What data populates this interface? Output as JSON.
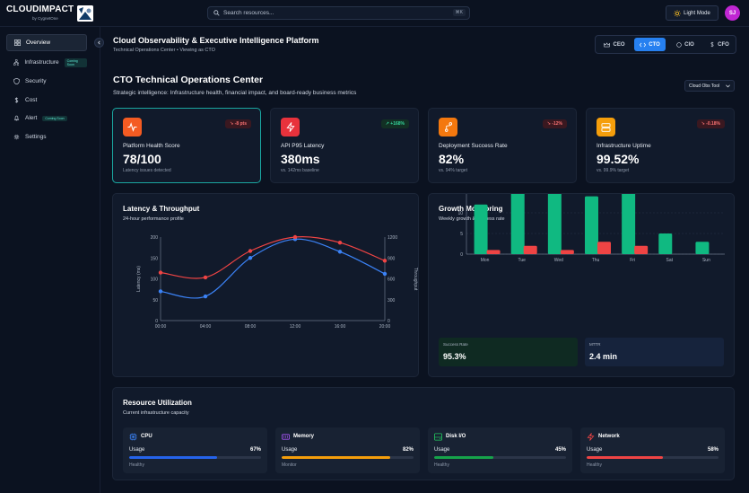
{
  "app": {
    "logo_text": "CLOUDIMPACT",
    "logo_sub": "by CygnetOne",
    "search_placeholder": "Search resources...",
    "search_shortcut": "⌘K",
    "light_mode_label": "Light Mode",
    "avatar_initials": "SJ"
  },
  "sidebar": {
    "items": [
      {
        "label": "Overview",
        "icon": "grid-icon",
        "active": true
      },
      {
        "label": "Infrastructure",
        "icon": "network-icon",
        "badge": "Coming Soon"
      },
      {
        "label": "Security",
        "icon": "shield-icon"
      },
      {
        "label": "Cost",
        "icon": "dollar-icon"
      },
      {
        "label": "Alert",
        "icon": "bell-icon",
        "badge": "Coming Soon"
      },
      {
        "label": "Settings",
        "icon": "gear-icon"
      }
    ]
  },
  "header": {
    "title": "Cloud Observability & Executive Intelligence Platform",
    "subtitle": "Technical Operations Center • Viewing as CTO",
    "roles": [
      {
        "label": "CEO",
        "active": false
      },
      {
        "label": "CTO",
        "active": true
      },
      {
        "label": "CIO",
        "active": false
      },
      {
        "label": "CFO",
        "active": false
      }
    ]
  },
  "section": {
    "title": "CTO Technical Operations Center",
    "subtitle": "Strategic intelligence: Infrastructure health, financial impact, and board-ready business metrics",
    "tool_select": "Cloud Obs Tool"
  },
  "kpis": [
    {
      "label": "Platform Health Score",
      "value": "78/100",
      "note": "Latency issues detected",
      "delta": "-8 pts",
      "trend": "down",
      "color": "#f45b22"
    },
    {
      "label": "API P95 Latency",
      "value": "380ms",
      "note": "vs. 142ms baseline",
      "delta": "+168%",
      "trend": "up",
      "color": "#e8323c"
    },
    {
      "label": "Deployment Success Rate",
      "value": "82%",
      "note": "vs. 94% target",
      "delta": "-12%",
      "trend": "down",
      "color": "#f4780e"
    },
    {
      "label": "Infrastructure Uptime",
      "value": "99.52%",
      "note": "vs. 99.9% target",
      "delta": "-0.18%",
      "trend": "down",
      "color": "#f59e0b"
    }
  ],
  "latency_panel": {
    "title": "Latency & Throughput",
    "subtitle": "24-hour performance profile",
    "left_axis_label": "Latency (ms)",
    "right_axis_label": "Throughput"
  },
  "growth_panel": {
    "title": "Growth Monitoring",
    "subtitle": "Weekly growth & success rate",
    "stats": [
      {
        "label": "Success Rate",
        "value": "95.3%"
      },
      {
        "label": "MTTR",
        "value": "2.4 min"
      }
    ]
  },
  "chart_data": [
    {
      "type": "line",
      "x": [
        "00:00",
        "04:00",
        "08:00",
        "12:00",
        "16:00",
        "20:00"
      ],
      "series": [
        {
          "values": [
            70,
            58,
            150,
            195,
            165,
            112
          ],
          "axis": "left",
          "color": "#3b82f6"
        },
        {
          "values": [
            690,
            620,
            1000,
            1200,
            1120,
            860
          ],
          "axis": "right",
          "color": "#ef4444"
        }
      ],
      "ylim": [
        0,
        200
      ],
      "y_ticks": [
        0,
        50,
        100,
        150,
        200
      ],
      "y2lim": [
        0,
        1200
      ],
      "y2_ticks": [
        0,
        300,
        600,
        900,
        1200
      ],
      "ylabel": "Latency (ms)",
      "y2label": "Throughput",
      "grid": false
    },
    {
      "type": "bar",
      "categories": [
        "Mon",
        "Tue",
        "Wed",
        "Thu",
        "Fri",
        "Sat",
        "Sun"
      ],
      "series": [
        {
          "values": [
            12,
            15,
            18,
            14,
            16,
            5,
            3
          ],
          "color": "#10b981"
        },
        {
          "values": [
            1,
            2,
            1,
            3,
            2,
            0,
            0
          ],
          "color": "#ef4444"
        }
      ],
      "ylim": [
        0,
        20
      ],
      "y_ticks": [
        0,
        5,
        10,
        15,
        20
      ],
      "grid": "horizontal-dashed"
    }
  ],
  "resources": {
    "title": "Resource Utilization",
    "subtitle": "Current infrastructure capacity",
    "usage_label": "Usage",
    "items": [
      {
        "name": "CPU",
        "pct": "67%",
        "value": 67,
        "status": "Healthy",
        "color": "#2563eb",
        "icon": "cpu-icon"
      },
      {
        "name": "Memory",
        "pct": "82%",
        "value": 82,
        "status": "Monitor",
        "color": "#f59e0b",
        "icon": "memory-icon"
      },
      {
        "name": "Disk I/O",
        "pct": "45%",
        "value": 45,
        "status": "Healthy",
        "color": "#16a34a",
        "icon": "disk-icon"
      },
      {
        "name": "Network",
        "pct": "58%",
        "value": 58,
        "status": "Healthy",
        "color": "#ef4444",
        "icon": "network-bolt-icon"
      }
    ]
  }
}
